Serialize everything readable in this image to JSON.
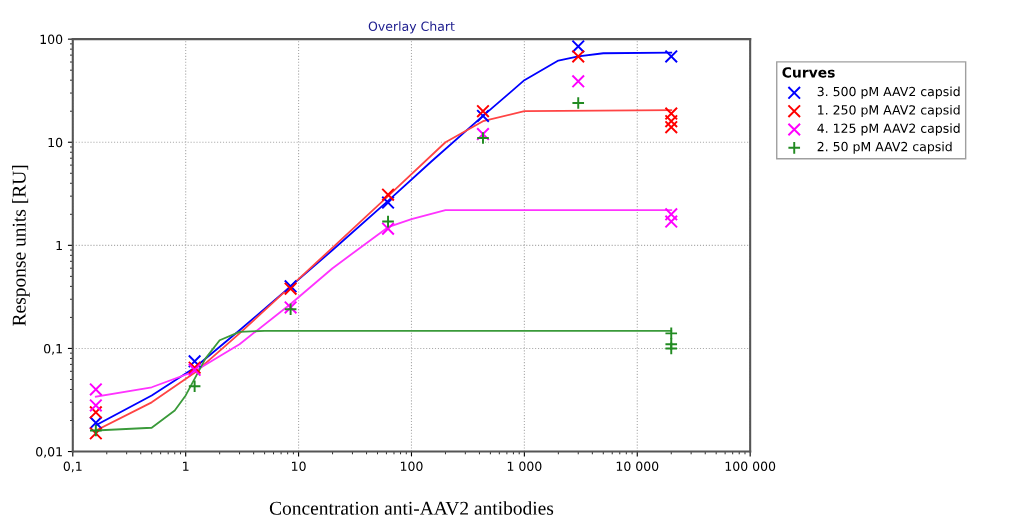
{
  "chart_data": {
    "type": "scatter",
    "title": "Overlay Chart",
    "xlabel": "Concentration anti-AAV2 antibodies",
    "ylabel": "Response units [RU]",
    "legend_title": "Curves",
    "log": "xy",
    "grid": true,
    "legend": "right",
    "xlim": [
      0.1,
      100000
    ],
    "xticks": [
      {
        "value": 0.1,
        "label": "0,1"
      },
      1,
      10,
      100,
      {
        "value": 1000,
        "label": "1 000"
      },
      {
        "value": 10000,
        "label": "10 000"
      },
      {
        "value": 100000,
        "label": "100 000"
      }
    ],
    "ylim": [
      0.01,
      100
    ],
    "yticks": [
      {
        "value": 0.01,
        "label": "0,01"
      },
      {
        "value": 0.1,
        "label": "0,1"
      },
      1,
      10,
      100
    ],
    "series": [
      {
        "name": "3. 500 pM AAV2 capsid",
        "color": "#0000ff",
        "marker": "cross",
        "x": [
          0.16,
          1.2,
          8.5,
          62,
          430,
          3000,
          20000
        ],
        "values": [
          0.019,
          0.075,
          0.4,
          2.6,
          18,
          85,
          68
        ]
      },
      {
        "name": "1. 250 pM AAV2 capsid",
        "color": "#ff0000",
        "marker": "cross",
        "x": [
          0.16,
          0.16,
          1.2,
          8.5,
          62,
          430,
          3000,
          20000,
          20000,
          20000
        ],
        "values": [
          0.015,
          0.024,
          0.065,
          0.38,
          3.1,
          20,
          68,
          19,
          16,
          14
        ]
      },
      {
        "name": "4. 125 pM AAV2 capsid",
        "color": "#ff00ff",
        "marker": "cross",
        "x": [
          0.16,
          0.16,
          1.2,
          8.5,
          62,
          430,
          3000,
          20000,
          20000
        ],
        "values": [
          0.04,
          0.028,
          0.062,
          0.25,
          1.45,
          12,
          39,
          2.0,
          1.7
        ]
      },
      {
        "name": "2. 50 pM AAV2 capsid",
        "color": "#228b22",
        "marker": "plus",
        "x": [
          0.16,
          1.2,
          8.5,
          62,
          430,
          3000,
          20000,
          20000,
          20000
        ],
        "values": [
          0.016,
          0.043,
          0.24,
          1.7,
          11,
          24,
          0.14,
          0.11,
          0.1
        ]
      },
      {
        "type": "line",
        "color": "#0000ff",
        "x": [
          0.16,
          0.5,
          1.2,
          3,
          8.5,
          20,
          62,
          150,
          430,
          1000,
          2000,
          3000,
          5000,
          20000
        ],
        "values": [
          0.018,
          0.035,
          0.065,
          0.15,
          0.4,
          0.9,
          2.7,
          6.5,
          18,
          40,
          62,
          68,
          73,
          74
        ]
      },
      {
        "type": "line",
        "color": "#ff4444",
        "x": [
          0.16,
          0.5,
          1.2,
          3,
          8.5,
          20,
          62,
          200,
          430,
          1000,
          20000
        ],
        "values": [
          0.016,
          0.03,
          0.058,
          0.14,
          0.4,
          0.95,
          3.0,
          10,
          16,
          20,
          20.5
        ]
      },
      {
        "type": "line",
        "color": "#ff33ff",
        "x": [
          0.16,
          0.5,
          1.2,
          3,
          8.5,
          20,
          62,
          100,
          200,
          20000
        ],
        "values": [
          0.034,
          0.042,
          0.06,
          0.11,
          0.27,
          0.6,
          1.5,
          1.8,
          2.2,
          2.2
        ]
      },
      {
        "type": "line",
        "color": "#3a9a3a",
        "x": [
          0.16,
          0.5,
          0.8,
          1,
          1.5,
          2,
          3,
          5,
          20000
        ],
        "values": [
          0.016,
          0.017,
          0.025,
          0.035,
          0.08,
          0.12,
          0.145,
          0.148,
          0.148
        ]
      }
    ]
  }
}
